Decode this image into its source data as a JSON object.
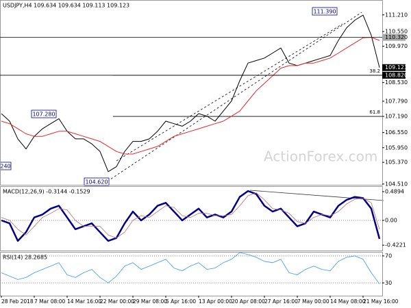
{
  "chart_data": [
    {
      "type": "line",
      "title": "USDJPY,H4 109.634 109.634 109.113 109.123",
      "ylim": [
        104.48,
        111.8
      ],
      "yticks": [
        {
          "value": 111.21,
          "label": "111.210"
        },
        {
          "value": 110.55,
          "label": "110.550"
        },
        {
          "value": 109.97,
          "label": "109.970"
        },
        {
          "value": 108.53,
          "label": "108.530"
        },
        {
          "value": 107.79,
          "label": "107.790"
        },
        {
          "value": 107.19,
          "label": "107.190"
        },
        {
          "value": 106.55,
          "label": "106.550"
        },
        {
          "value": 105.95,
          "label": "105.950"
        },
        {
          "value": 105.37,
          "label": "105.370"
        },
        {
          "value": 104.51,
          "label": "104.510"
        }
      ],
      "series": [
        {
          "color": "#000000",
          "values": [
            107.3,
            107.0,
            106.3,
            105.9,
            106.4,
            106.7,
            106.9,
            107.1,
            106.6,
            106.3,
            106.3,
            106.1,
            105.8,
            105.0,
            105.2,
            105.8,
            106.2,
            106.2,
            106.3,
            106.6,
            107.0,
            106.9,
            106.8,
            107.0,
            107.3,
            107.2,
            107.0,
            107.4,
            107.8,
            108.6,
            109.3,
            109.4,
            109.5,
            109.7,
            109.9,
            109.3,
            109.2,
            109.3,
            109.4,
            109.5,
            109.6,
            110.2,
            110.7,
            111.0,
            111.2,
            110.4,
            109.123
          ]
        },
        {
          "color": "#e8262b",
          "values": [
            107.0,
            106.9,
            106.7,
            106.5,
            106.4,
            106.4,
            106.5,
            106.6,
            106.6,
            106.5,
            106.4,
            106.3,
            106.2,
            106.0,
            105.8,
            105.7,
            105.7,
            105.8,
            105.9,
            106.0,
            106.2,
            106.4,
            106.5,
            106.6,
            106.7,
            106.8,
            106.9,
            107.0,
            107.2,
            107.4,
            107.8,
            108.2,
            108.5,
            108.8,
            109.1,
            109.2,
            109.2,
            109.3,
            109.3,
            109.4,
            109.5,
            109.7,
            109.9,
            110.1,
            110.3,
            110.32,
            110.2
          ]
        }
      ],
      "levels": [
        {
          "value": 110.32,
          "label": "110.320",
          "line": true,
          "box": "#a8a8a8",
          "text_color": "#000000"
        },
        {
          "value": 109.123,
          "label": "109.123",
          "line": false,
          "box": "#000000",
          "text_color": "#ffffff"
        },
        {
          "value": 108.82,
          "label": "108.820",
          "line": true,
          "box": "#000000",
          "text_color": "#ffffff"
        }
      ],
      "fib_levels": [
        {
          "value": 108.82,
          "label": "38.2"
        },
        {
          "value": 107.19,
          "label": "61.8"
        }
      ],
      "annotations": [
        "111.390",
        "107.280",
        "104.620",
        "240",
        "ActionForex.com"
      ]
    },
    {
      "type": "line",
      "title": "MACD(12,26,9) -0.3144 -0.1529",
      "ylim": [
        -0.513,
        0.583
      ],
      "yticks": [
        0.4894,
        {
          "value": 0,
          "label": "0.00"
        },
        -0.4221
      ],
      "zero_line": true,
      "series": [
        {
          "color": "#00008b",
          "width": 2.5,
          "values": [
            0.0,
            -0.05,
            -0.35,
            -0.2,
            0.05,
            0.1,
            0.2,
            0.25,
            0.05,
            -0.15,
            -0.1,
            -0.05,
            -0.2,
            -0.35,
            -0.3,
            -0.05,
            0.15,
            0.0,
            0.1,
            0.25,
            0.3,
            0.15,
            0.0,
            0.1,
            0.2,
            0.05,
            0.1,
            0.05,
            0.15,
            0.4,
            0.5,
            0.45,
            0.25,
            0.15,
            0.2,
            0.05,
            -0.1,
            -0.05,
            0.15,
            0.1,
            0.05,
            0.25,
            0.35,
            0.4,
            0.38,
            0.2,
            -0.3144
          ]
        },
        {
          "color": "#b07070",
          "width": 0.8,
          "values": [
            0.05,
            0.0,
            -0.15,
            -0.25,
            -0.1,
            0.05,
            0.12,
            0.2,
            0.18,
            0.0,
            -0.1,
            -0.1,
            -0.1,
            -0.25,
            -0.3,
            -0.2,
            0.0,
            0.08,
            0.05,
            0.15,
            0.25,
            0.22,
            0.08,
            0.05,
            0.12,
            0.12,
            0.08,
            0.08,
            0.1,
            0.25,
            0.42,
            0.47,
            0.35,
            0.2,
            0.18,
            0.12,
            -0.02,
            -0.05,
            0.05,
            0.1,
            0.08,
            0.15,
            0.28,
            0.36,
            0.38,
            0.3,
            -0.1529
          ]
        }
      ]
    },
    {
      "type": "line",
      "title": "RSI(14) 28.2685",
      "ylim": [
        11,
        76
      ],
      "yticks": [
        70,
        30
      ],
      "grid": true,
      "series": [
        {
          "color": "#3399ff",
          "width": 0.8,
          "values": [
            45,
            40,
            35,
            38,
            45,
            50,
            55,
            60,
            42,
            38,
            45,
            50,
            38,
            30,
            40,
            55,
            60,
            50,
            55,
            60,
            65,
            52,
            48,
            55,
            60,
            50,
            52,
            60,
            65,
            75,
            72,
            68,
            62,
            60,
            65,
            45,
            42,
            50,
            55,
            50,
            48,
            62,
            68,
            70,
            65,
            45,
            28.2685
          ]
        }
      ],
      "xticks": [
        {
          "value": 0,
          "label": "28 Feb 2018"
        },
        {
          "value": 4,
          "label": "7 Mar 08:00"
        },
        {
          "value": 8,
          "label": "14 Mar 16:00"
        },
        {
          "value": 12,
          "label": "22 Mar 00:00"
        },
        {
          "value": 16,
          "label": "29 Mar 08:00"
        },
        {
          "value": 20,
          "label": "5 Apr 16:00"
        },
        {
          "value": 24,
          "label": "13 Apr 00:00"
        },
        {
          "value": 28,
          "label": "20 Apr 08:00"
        },
        {
          "value": 32,
          "label": "27 Apr 16:00"
        },
        {
          "value": 36,
          "label": "7 May 00:00"
        },
        {
          "value": 40,
          "label": "14 May 08:00"
        },
        {
          "value": 44,
          "label": "21 May 16:00"
        }
      ]
    }
  ]
}
